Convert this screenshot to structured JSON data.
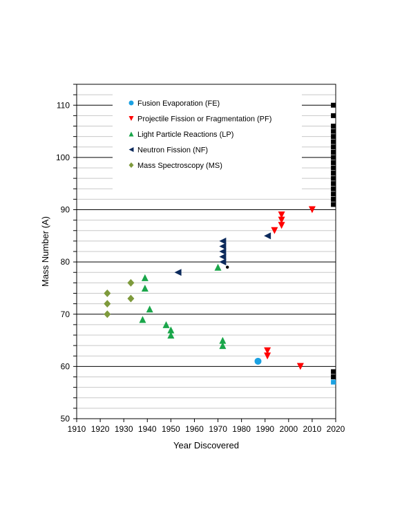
{
  "chart_data": {
    "type": "scatter",
    "xlabel": "Year Discovered",
    "ylabel": "Mass Number (A)",
    "xlim": [
      1910,
      2020
    ],
    "ylim": [
      50,
      114
    ],
    "x_ticks": [
      1910,
      1920,
      1930,
      1940,
      1950,
      1960,
      1970,
      1980,
      1990,
      2000,
      2010,
      2020
    ],
    "y_ticks": [
      50,
      60,
      70,
      80,
      90,
      100,
      110
    ],
    "grid": "horizontal",
    "legend": "top-left",
    "series": [
      {
        "name": "Fusion Evaporation (FE)",
        "marker": "circle",
        "color": "#1ba1e2",
        "points": [
          [
            1987,
            61
          ]
        ]
      },
      {
        "name": "Projectile Fission or Fragmentation (PF)",
        "marker": "triangle-down",
        "color": "#ff0000",
        "points": [
          [
            1991,
            63
          ],
          [
            1991,
            62
          ],
          [
            1994,
            86
          ],
          [
            1997,
            89
          ],
          [
            1997,
            88
          ],
          [
            1997,
            87
          ],
          [
            2005,
            60
          ],
          [
            2010,
            90
          ]
        ]
      },
      {
        "name": "Light Particle Reactions (LP)",
        "marker": "triangle-up",
        "color": "#1aa64a",
        "points": [
          [
            1938,
            69
          ],
          [
            1939,
            77
          ],
          [
            1939,
            75
          ],
          [
            1941,
            71
          ],
          [
            1948,
            68
          ],
          [
            1950,
            67
          ],
          [
            1950,
            66
          ],
          [
            1970,
            79
          ],
          [
            1972,
            65
          ],
          [
            1972,
            64
          ]
        ]
      },
      {
        "name": "Neutron Fission (NF)",
        "marker": "triangle-left",
        "color": "#0c2a5c",
        "points": [
          [
            1953,
            78
          ],
          [
            1972,
            84
          ],
          [
            1972,
            83
          ],
          [
            1972,
            82
          ],
          [
            1972,
            81
          ],
          [
            1972,
            80
          ],
          [
            1991,
            85
          ]
        ]
      },
      {
        "name": "Mass Spectroscopy (MS)",
        "marker": "diamond",
        "color": "#7e9a3c",
        "points": [
          [
            1923,
            74
          ],
          [
            1923,
            72
          ],
          [
            1923,
            70
          ],
          [
            1933,
            76
          ],
          [
            1933,
            73
          ]
        ]
      }
    ],
    "extra_points": [
      {
        "marker": "small-dot",
        "color": "#000000",
        "points": [
          [
            1974,
            79
          ]
        ]
      },
      {
        "marker": "square",
        "color": "#000000",
        "points": [
          [
            2019,
            110
          ],
          [
            2019,
            108
          ],
          [
            2019,
            106
          ],
          [
            2019,
            105
          ],
          [
            2019,
            104
          ],
          [
            2019,
            103
          ],
          [
            2019,
            102
          ],
          [
            2019,
            101
          ],
          [
            2019,
            100
          ],
          [
            2019,
            99
          ],
          [
            2019,
            98
          ],
          [
            2019,
            97
          ],
          [
            2019,
            96
          ],
          [
            2019,
            95
          ],
          [
            2019,
            94
          ],
          [
            2019,
            93
          ],
          [
            2019,
            92
          ],
          [
            2019,
            91
          ],
          [
            2019,
            59
          ],
          [
            2019,
            58
          ]
        ]
      },
      {
        "marker": "square",
        "color": "#1ba1e2",
        "points": [
          [
            2019,
            57
          ]
        ]
      }
    ]
  }
}
